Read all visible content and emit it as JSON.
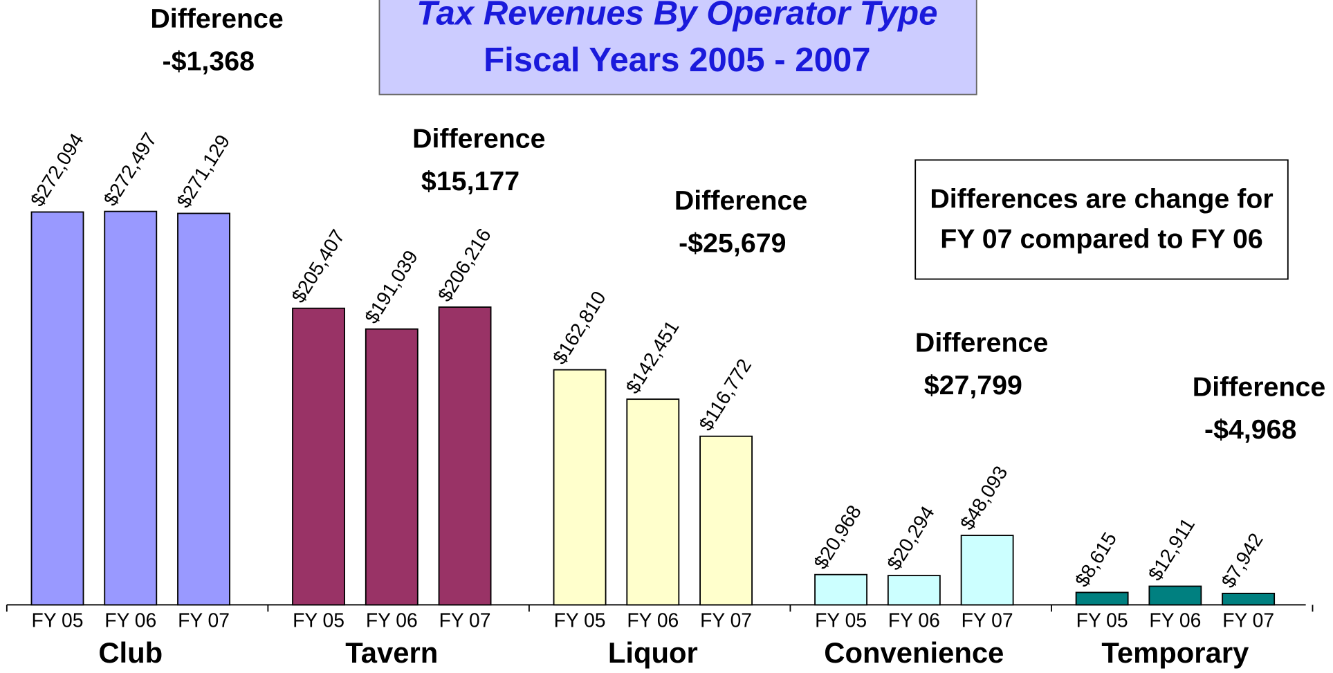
{
  "chart_data": {
    "type": "bar",
    "title": "Tax Revenues By Operator Type",
    "subtitle": "Fiscal Years 2005 - 2007",
    "note": [
      "Differences are change for",
      "FY 07 compared to FY 06"
    ],
    "subcategories": [
      "FY 05",
      "FY 06",
      "FY 07"
    ],
    "groups": [
      {
        "name": "Club",
        "color": "#9999ff",
        "values": [
          272094,
          272497,
          271129
        ],
        "value_labels": [
          "$272,094",
          "$272,497",
          "$271,129"
        ],
        "difference_title": "Difference",
        "difference": "-$1,368"
      },
      {
        "name": "Tavern",
        "color": "#993366",
        "values": [
          205407,
          191039,
          206216
        ],
        "value_labels": [
          "$205,407",
          "$191,039",
          "$206,216"
        ],
        "difference_title": "Difference",
        "difference": "$15,177"
      },
      {
        "name": "Liquor",
        "color": "#ffffcc",
        "values": [
          162810,
          142451,
          116772
        ],
        "value_labels": [
          "$162,810",
          "$142,451",
          "$116,772"
        ],
        "difference_title": "Difference",
        "difference": "-$25,679"
      },
      {
        "name": "Convenience",
        "color": "#ccffff",
        "values": [
          20968,
          20294,
          48093
        ],
        "value_labels": [
          "$20,968",
          "$20,294",
          "$48,093"
        ],
        "difference_title": "Difference",
        "difference": "$27,799"
      },
      {
        "name": "Temporary",
        "color": "#008080",
        "values": [
          8615,
          12911,
          7942
        ],
        "value_labels": [
          "$8,615",
          "$12,911",
          "$7,942"
        ],
        "difference_title": "Difference",
        "difference": "-$4,968"
      }
    ]
  }
}
